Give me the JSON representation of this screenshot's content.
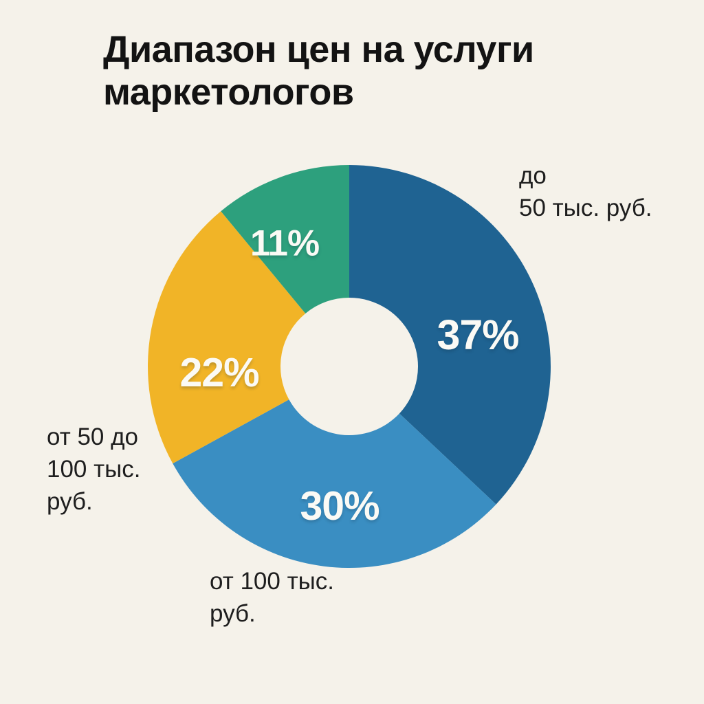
{
  "title": "Диапазон цен на услуги маркетологов",
  "chart_data": {
    "type": "pie",
    "donut": true,
    "title": "Диапазон цен на услуги маркетологов",
    "start_angle_deg": 0,
    "direction": "clockwise",
    "hole_ratio": 0.34,
    "background_color": "#f5f2ea",
    "slices": [
      {
        "label": "до\n50 тыс. руб.",
        "value": 37,
        "pct": "37%",
        "color": "#1f6392"
      },
      {
        "label": "от 100 тыс.\nруб.",
        "value": 30,
        "pct": "30%",
        "color": "#3a8ec2"
      },
      {
        "label": "от 50 до\n100 тыс.\nруб.",
        "value": 22,
        "pct": "22%",
        "color": "#f1b427"
      },
      {
        "label": "",
        "value": 11,
        "pct": "11%",
        "color": "#2da07d"
      }
    ]
  }
}
